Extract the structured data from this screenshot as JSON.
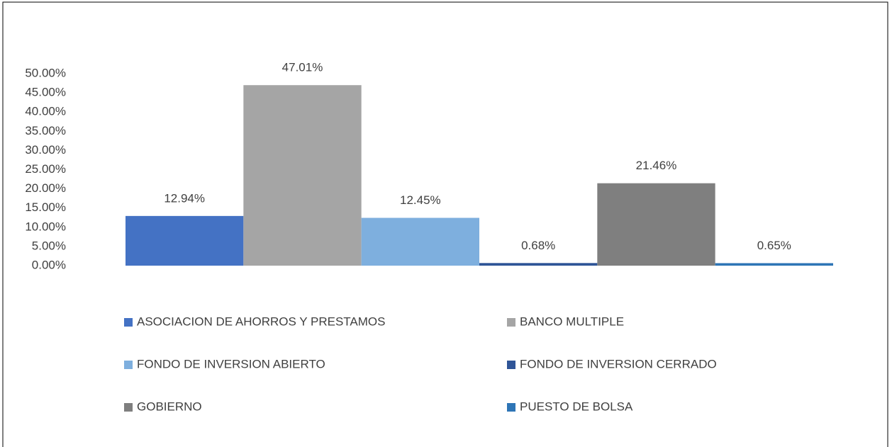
{
  "chart_data": {
    "type": "bar",
    "series": [
      {
        "name": "ASOCIACION DE AHORROS Y PRESTAMOS",
        "color": "#4472c4",
        "values": [
          12.94
        ],
        "value_labels": [
          "12.94%"
        ]
      },
      {
        "name": "BANCO MULTIPLE",
        "color": "#a5a5a5",
        "values": [
          47.01
        ],
        "value_labels": [
          "47.01%"
        ]
      },
      {
        "name": "FONDO DE INVERSION ABIERTO",
        "color": "#7eafde",
        "values": [
          12.45
        ],
        "value_labels": [
          "12.45%"
        ]
      },
      {
        "name": "FONDO DE INVERSION CERRADO",
        "color": "#2f5597",
        "values": [
          0.68
        ],
        "value_labels": [
          "0.68%"
        ]
      },
      {
        "name": "GOBIERNO",
        "color": "#7f7f7f",
        "values": [
          21.46
        ],
        "value_labels": [
          "21.46%"
        ]
      },
      {
        "name": "PUESTO DE BOLSA",
        "color": "#2e75b6",
        "values": [
          0.65
        ],
        "value_labels": [
          "0.65%"
        ]
      }
    ],
    "ylim": [
      0,
      50
    ],
    "yticks": [
      {
        "value": 0,
        "label": "0.00%"
      },
      {
        "value": 5,
        "label": "5.00%"
      },
      {
        "value": 10,
        "label": "10.00%"
      },
      {
        "value": 15,
        "label": "15.00%"
      },
      {
        "value": 20,
        "label": "20.00%"
      },
      {
        "value": 25,
        "label": "25.00%"
      },
      {
        "value": 30,
        "label": "30.00%"
      },
      {
        "value": 35,
        "label": "35.00%"
      },
      {
        "value": 40,
        "label": "40.00%"
      },
      {
        "value": 45,
        "label": "45.00%"
      },
      {
        "value": 50,
        "label": "50.00%"
      }
    ],
    "grid": false,
    "legend": "bottom"
  }
}
